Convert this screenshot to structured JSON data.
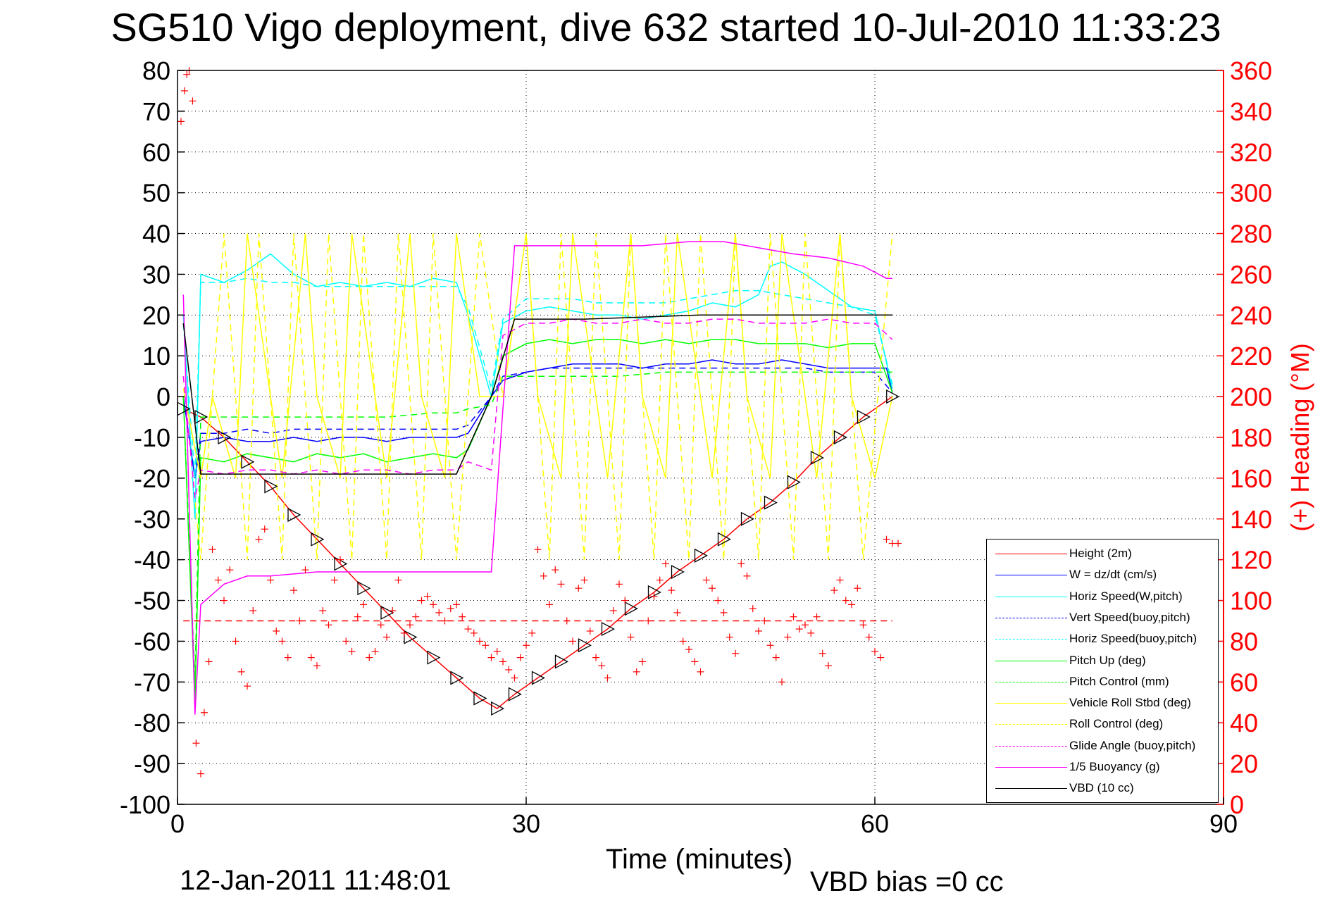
{
  "header": {
    "title": "SG510 Vigo deployment, dive 632 started 10-Jul-2010 11:33:23",
    "timestamp": "12-Jan-2011 11:48:01",
    "vbd_bias": "VBD bias =0 cc"
  },
  "chart_data": {
    "type": "line",
    "title": "SG510 Vigo deployment, dive 632 started 10-Jul-2010 11:33:23",
    "xlabel": "Time (minutes)",
    "ylabel": "",
    "y2label": "(+) Heading (°M)",
    "xlim": [
      0,
      90
    ],
    "ylim": [
      -100,
      80
    ],
    "y2lim": [
      0,
      360
    ],
    "xticks": [
      0,
      30,
      60,
      90
    ],
    "yticks": [
      80,
      70,
      60,
      50,
      40,
      30,
      20,
      10,
      0,
      -10,
      -20,
      -30,
      -40,
      -50,
      -60,
      -70,
      -80,
      -90,
      -100
    ],
    "y2ticks": [
      360,
      340,
      320,
      300,
      280,
      260,
      240,
      220,
      200,
      180,
      160,
      140,
      120,
      100,
      80,
      60,
      40,
      20,
      0
    ],
    "grid": true,
    "legend_position": "bottom-right",
    "colors": {
      "height": "#ff0000",
      "w": "#0000ff",
      "horiz_w": "#00ffff",
      "pitch": "#00ff00",
      "roll": "#ffff00",
      "glide": "#ff00ff",
      "buoyancy": "#ff00ff",
      "vbd": "#000000",
      "heading_axis": "#ff0000"
    },
    "series": [
      {
        "name": "Height (2m)",
        "color": "#ff0000",
        "style": "solid",
        "marker": "triangle",
        "x": [
          0.5,
          2,
          4,
          6,
          8,
          10,
          12,
          14,
          16,
          18,
          20,
          22,
          24,
          26,
          27.5,
          29,
          31,
          33,
          35,
          37,
          39,
          41,
          43,
          45,
          47,
          49,
          51,
          53,
          55,
          57,
          59,
          61.5
        ],
        "y": [
          -3,
          -5,
          -10,
          -16,
          -22,
          -29,
          -35,
          -41,
          -47,
          -53,
          -59,
          -64,
          -69,
          -74,
          -76.5,
          -73,
          -69,
          -65,
          -61,
          -57,
          -52,
          -48,
          -43,
          -39,
          -35,
          -30,
          -26,
          -21,
          -15,
          -10,
          -5,
          0
        ]
      },
      {
        "name": "W = dz/dt (cm/s)",
        "color": "#0000ff",
        "style": "solid",
        "x": [
          0.5,
          1.5,
          2,
          4,
          6,
          8,
          10,
          12,
          14,
          16,
          18,
          20,
          22,
          24,
          25,
          27,
          28,
          30,
          32,
          34,
          36,
          38,
          40,
          42,
          44,
          46,
          48,
          50,
          52,
          54,
          56,
          58,
          60,
          61,
          61.5
        ],
        "y": [
          0,
          -20,
          -11,
          -10,
          -11,
          -11,
          -10,
          -11,
          -10,
          -10,
          -11,
          -10,
          -10,
          -10,
          -9,
          0,
          4,
          6,
          7,
          8,
          8,
          8,
          7,
          8,
          8,
          9,
          8,
          8,
          9,
          8,
          7,
          7,
          7,
          7,
          1
        ]
      },
      {
        "name": "Horiz Speed(W,pitch)",
        "color": "#00ffff",
        "style": "solid",
        "x": [
          0.5,
          1.5,
          2,
          4,
          6,
          8,
          10,
          12,
          14,
          16,
          18,
          20,
          22,
          24,
          25,
          27,
          28,
          30,
          32,
          34,
          36,
          38,
          40,
          42,
          44,
          46,
          48,
          50,
          51,
          52,
          54,
          56,
          58,
          60,
          61.5
        ],
        "y": [
          20,
          -30,
          30,
          28,
          31,
          35,
          30,
          27,
          28,
          27,
          28,
          27,
          29,
          28,
          20,
          0,
          18,
          21,
          22,
          21,
          20,
          20,
          19,
          20,
          21,
          23,
          22,
          25,
          32,
          33,
          30,
          26,
          22,
          21,
          2
        ]
      },
      {
        "name": "Vert Speed(buoy,pitch)",
        "color": "#0000ff",
        "style": "dashed",
        "x": [
          0.5,
          1.5,
          2,
          4,
          6,
          8,
          10,
          12,
          14,
          16,
          18,
          20,
          22,
          24,
          25,
          27,
          28,
          30,
          32,
          34,
          36,
          38,
          40,
          42,
          44,
          46,
          48,
          50,
          52,
          54,
          56,
          58,
          60,
          61.5
        ],
        "y": [
          0,
          -20,
          -9,
          -9,
          -8,
          -9,
          -8,
          -8,
          -8,
          -8,
          -8,
          -8,
          -8,
          -8,
          -7,
          0,
          5,
          6,
          7,
          7,
          7,
          7,
          7,
          7,
          7,
          7,
          7,
          7,
          7,
          7,
          6,
          6,
          6,
          1
        ]
      },
      {
        "name": "Horiz Speed(buoy,pitch)",
        "color": "#00ffff",
        "style": "dashed",
        "x": [
          0.5,
          1.5,
          2,
          4,
          6,
          8,
          10,
          12,
          14,
          16,
          18,
          20,
          22,
          24,
          25,
          27,
          28,
          30,
          32,
          34,
          36,
          38,
          40,
          42,
          44,
          46,
          48,
          50,
          52,
          54,
          56,
          58,
          60,
          61.5
        ],
        "y": [
          18,
          -20,
          28,
          28,
          29,
          28,
          28,
          27,
          27,
          27,
          27,
          27,
          27,
          27,
          22,
          2,
          19,
          24,
          24,
          24,
          23,
          23,
          23,
          23,
          24,
          25,
          26,
          26,
          25,
          24,
          23,
          22,
          20,
          3
        ]
      },
      {
        "name": "Pitch Up (deg)",
        "color": "#00ff00",
        "style": "solid",
        "x": [
          0.5,
          1.5,
          2,
          4,
          6,
          8,
          10,
          12,
          14,
          16,
          18,
          20,
          22,
          24,
          25,
          27,
          28,
          30,
          32,
          34,
          36,
          38,
          40,
          42,
          44,
          46,
          48,
          50,
          52,
          54,
          56,
          58,
          60,
          61.5
        ],
        "y": [
          0,
          -75,
          -15,
          -16,
          -14,
          -15,
          -16,
          -14,
          -15,
          -14,
          -16,
          -15,
          -14,
          -15,
          -13,
          0,
          10,
          13,
          14,
          13,
          14,
          14,
          13,
          14,
          13,
          14,
          14,
          13,
          13,
          13,
          12,
          13,
          13,
          1
        ]
      },
      {
        "name": "Pitch Control (mm)",
        "color": "#00ff00",
        "style": "dashed",
        "x": [
          0.5,
          1.5,
          2,
          6,
          10,
          14,
          18,
          22,
          24,
          25,
          27,
          28,
          30,
          34,
          38,
          42,
          46,
          50,
          54,
          58,
          61.5
        ],
        "y": [
          0,
          -70,
          -5,
          -5,
          -5,
          -5,
          -5,
          -4,
          -4,
          -3,
          -2,
          5,
          5,
          5,
          5,
          6,
          6,
          6,
          6,
          6,
          6
        ]
      },
      {
        "name": "Vehicle Roll Stbd (deg)",
        "color": "#ffff00",
        "style": "solid",
        "x": [
          0.5,
          2,
          3,
          5,
          6,
          8,
          9,
          11,
          12,
          14,
          15,
          17,
          18,
          20,
          21,
          23,
          24,
          26,
          28,
          30,
          31,
          33,
          34,
          36,
          37,
          39,
          40,
          42,
          43,
          45,
          46,
          48,
          49,
          51,
          52,
          54,
          55,
          57,
          58,
          60,
          61.5
        ],
        "y": [
          2,
          -20,
          0,
          -20,
          40,
          0,
          -20,
          40,
          0,
          -20,
          40,
          0,
          -20,
          40,
          0,
          -20,
          40,
          0,
          0,
          40,
          0,
          -20,
          40,
          0,
          -20,
          40,
          0,
          -20,
          40,
          0,
          -20,
          40,
          0,
          -20,
          40,
          0,
          -20,
          40,
          0,
          -20,
          0
        ]
      },
      {
        "name": "Roll Control (deg)",
        "color": "#ffff00",
        "style": "dashed",
        "x": [
          0.5,
          2,
          4,
          6,
          7,
          9,
          10,
          12,
          13,
          15,
          16,
          18,
          19,
          21,
          22,
          24,
          26,
          28,
          30,
          32,
          33,
          35,
          36,
          38,
          39,
          41,
          42,
          44,
          45,
          47,
          48,
          50,
          51,
          53,
          54,
          56,
          57,
          59,
          61.5
        ],
        "y": [
          5,
          -40,
          40,
          -40,
          40,
          -40,
          40,
          -40,
          40,
          -40,
          40,
          -40,
          40,
          -40,
          40,
          -40,
          40,
          0,
          40,
          -40,
          40,
          -40,
          40,
          -40,
          40,
          -40,
          40,
          -40,
          40,
          -40,
          40,
          -40,
          40,
          -40,
          40,
          -40,
          40,
          -40,
          40
        ]
      },
      {
        "name": "Glide Angle (buoy,pitch)",
        "color": "#ff00ff",
        "style": "dashed",
        "x": [
          0.5,
          1.5,
          2,
          4,
          6,
          8,
          10,
          12,
          14,
          16,
          18,
          20,
          22,
          24,
          25,
          27,
          28,
          30,
          32,
          34,
          36,
          38,
          40,
          42,
          44,
          46,
          48,
          50,
          52,
          54,
          56,
          58,
          60,
          61.5
        ],
        "y": [
          5,
          -25,
          -18,
          -19,
          -18,
          -18,
          -19,
          -18,
          -19,
          -18,
          -18,
          -19,
          -18,
          -18,
          -16,
          -18,
          15,
          18,
          18,
          19,
          18,
          18,
          19,
          18,
          18,
          19,
          19,
          18,
          18,
          18,
          19,
          18,
          18,
          14
        ]
      },
      {
        "name": "1/5 Buoyancy (g)",
        "color": "#ff00ff",
        "style": "solid",
        "x": [
          0.5,
          1.5,
          2,
          4,
          6,
          8,
          12,
          16,
          20,
          24,
          27,
          29,
          30,
          35,
          40,
          44,
          47,
          49,
          51,
          53,
          56,
          59,
          61,
          61.5
        ],
        "y": [
          25,
          -78,
          -51,
          -46,
          -44,
          -44,
          -43,
          -43,
          -43,
          -43,
          -43,
          37,
          37,
          37,
          37,
          38,
          38,
          37,
          36,
          35,
          34,
          32,
          29,
          29
        ]
      },
      {
        "name": "VBD (10 cc)",
        "color": "#000000",
        "style": "solid",
        "x": [
          0.5,
          2,
          24,
          27,
          29,
          35,
          45,
          50,
          55,
          61.5
        ],
        "y": [
          18,
          -19,
          -19,
          0,
          19,
          19,
          20,
          20,
          20,
          20
        ]
      }
    ],
    "heading": {
      "name": "Heading",
      "color": "#ff0000",
      "marker": "+",
      "axis": "right",
      "target": 90,
      "x": [
        0.3,
        0.6,
        0.8,
        1.0,
        1.3,
        1.6,
        2.0,
        2.3,
        2.7,
        3.0,
        3.5,
        4.0,
        4.5,
        5.0,
        5.5,
        6.0,
        6.5,
        7.0,
        7.5,
        8.0,
        8.5,
        9.0,
        9.5,
        10.0,
        10.5,
        11.0,
        11.5,
        12.0,
        12.5,
        13.0,
        13.5,
        14.0,
        14.5,
        15.0,
        15.5,
        16.0,
        16.5,
        17.0,
        17.5,
        18.0,
        18.5,
        19.0,
        19.5,
        20.0,
        20.5,
        21.0,
        21.5,
        22.0,
        22.5,
        23.0,
        23.5,
        24.0,
        24.5,
        25.0,
        25.5,
        26.0,
        26.5,
        27.0,
        27.5,
        28.0,
        28.5,
        29.0,
        29.5,
        30.0,
        30.5,
        31.0,
        31.5,
        32.0,
        32.5,
        33.0,
        33.5,
        34.0,
        34.5,
        35.0,
        35.5,
        36.0,
        36.5,
        37.0,
        37.5,
        38.0,
        38.5,
        39.0,
        39.5,
        40.0,
        40.5,
        41.0,
        41.5,
        42.0,
        42.5,
        43.0,
        43.5,
        44.0,
        44.5,
        45.0,
        45.5,
        46.0,
        46.5,
        47.0,
        47.5,
        48.0,
        48.5,
        49.0,
        49.5,
        50.0,
        50.5,
        51.0,
        51.5,
        52.0,
        52.5,
        53.0,
        53.5,
        54.0,
        54.5,
        55.0,
        55.5,
        56.0,
        56.5,
        57.0,
        57.5,
        58.0,
        58.5,
        59.0,
        59.5,
        60.0,
        60.5,
        61.0,
        61.5,
        62.0
      ],
      "y": [
        335,
        350,
        358,
        360,
        345,
        30,
        15,
        45,
        70,
        125,
        110,
        100,
        115,
        80,
        65,
        58,
        95,
        130,
        135,
        110,
        85,
        80,
        72,
        105,
        90,
        115,
        72,
        68,
        95,
        88,
        110,
        120,
        80,
        75,
        92,
        98,
        72,
        75,
        88,
        82,
        95,
        110,
        84,
        88,
        92,
        100,
        102,
        98,
        94,
        90,
        96,
        98,
        92,
        86,
        84,
        80,
        78,
        72,
        75,
        70,
        66,
        62,
        72,
        78,
        84,
        125,
        112,
        98,
        115,
        108,
        90,
        80,
        106,
        110,
        85,
        72,
        68,
        62,
        95,
        108,
        100,
        82,
        65,
        70,
        90,
        102,
        110,
        118,
        105,
        94,
        80,
        76,
        70,
        65,
        110,
        106,
        100,
        94,
        82,
        74,
        118,
        112,
        96,
        85,
        90,
        78,
        72,
        60,
        82,
        92,
        86,
        88,
        84,
        92,
        74,
        68,
        105,
        110,
        100,
        98,
        106,
        88,
        82,
        75,
        72,
        130,
        128,
        128
      ]
    }
  },
  "legend": {
    "items": [
      {
        "label": "Height (2m)",
        "color": "#ff0000",
        "style": "solid"
      },
      {
        "label": "W = dz/dt (cm/s)",
        "color": "#0000ff",
        "style": "solid"
      },
      {
        "label": "Horiz Speed(W,pitch)",
        "color": "#00ffff",
        "style": "solid"
      },
      {
        "label": "Vert Speed(buoy,pitch)",
        "color": "#0000ff",
        "style": "dashed"
      },
      {
        "label": "Horiz Speed(buoy,pitch)",
        "color": "#00ffff",
        "style": "dashed"
      },
      {
        "label": "Pitch Up (deg)",
        "color": "#00ff00",
        "style": "solid"
      },
      {
        "label": "Pitch Control (mm)",
        "color": "#00ff00",
        "style": "dashed"
      },
      {
        "label": "Vehicle Roll Stbd (deg)",
        "color": "#ffff00",
        "style": "solid"
      },
      {
        "label": "Roll Control (deg)",
        "color": "#ffff00",
        "style": "dashed"
      },
      {
        "label": "Glide Angle (buoy,pitch)",
        "color": "#ff00ff",
        "style": "dashed"
      },
      {
        "label": "1/5 Buoyancy (g)",
        "color": "#ff00ff",
        "style": "solid"
      },
      {
        "label": "VBD (10 cc)",
        "color": "#000000",
        "style": "solid"
      }
    ]
  }
}
